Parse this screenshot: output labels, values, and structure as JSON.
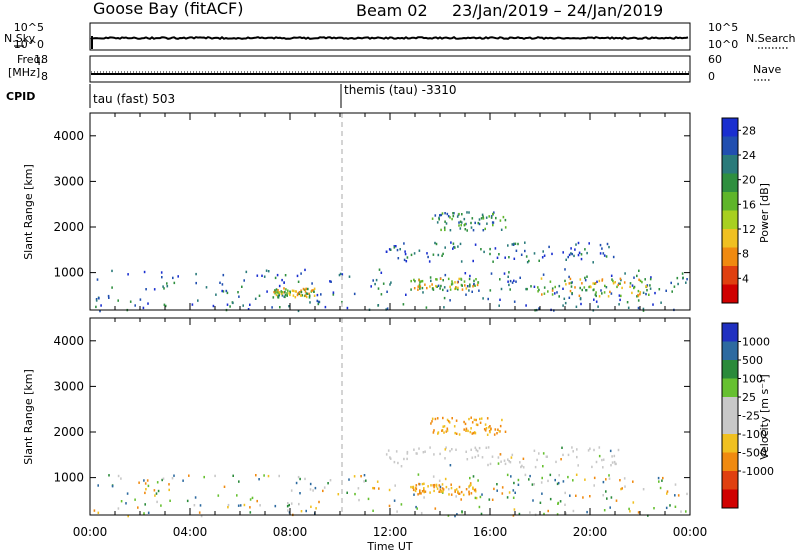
{
  "header": {
    "station": "Goose Bay (fitACF)",
    "beam": "Beam 02",
    "date_range": "23/Jan/2019 – 24/Jan/2019"
  },
  "status_panel": {
    "nsky_label": "N.Sky",
    "nsky_ticks": [
      "10^5",
      "10^0"
    ],
    "nsearch_label": "N.Search",
    "nsearch_ticks": [
      "10^5",
      "10^0"
    ],
    "freq_label_line1": "Freq.",
    "freq_label_line2": "[MHz]",
    "freq_ticks": [
      "18",
      "8"
    ],
    "nave_label": "Nave",
    "nave_ticks": [
      "60",
      "0"
    ],
    "cpid_label": "CPID",
    "cpid_entries": [
      "tau (fast) 503",
      "themis (tau) -3310"
    ]
  },
  "colors": {
    "power_scale": [
      "#1a2fd0",
      "#214fb0",
      "#2a7a7a",
      "#2f8f3f",
      "#5fb52a",
      "#a8d020",
      "#f0c020",
      "#f08a10",
      "#e04010",
      "#d00000"
    ],
    "velocity_scale": [
      "#2030c0",
      "#2d6aa0",
      "#2a8a3a",
      "#66c030",
      "#c8c8c8",
      "#c8c8c8",
      "#f0c020",
      "#f08a10",
      "#e04010",
      "#d00000"
    ],
    "scatter_power": [
      "#1a2fd0",
      "#214fb0",
      "#2a7a7a",
      "#2f8f3f",
      "#5fb52a",
      "#f0c020",
      "#f08a10"
    ],
    "scatter_velocity": [
      "#c8c8c8",
      "#f0c020",
      "#f08a10",
      "#66c030",
      "#2a8a3a",
      "#2d6aa0"
    ]
  },
  "chart_data": [
    {
      "type": "heatmap",
      "panel": "power",
      "ylabel": "Slant Range [km]",
      "xlabel": "Time UT",
      "x_ticks": [
        "00:00",
        "04:00",
        "08:00",
        "12:00",
        "16:00",
        "20:00",
        "00:00"
      ],
      "x_range_hours": [
        0,
        24
      ],
      "y_ticks": [
        1000,
        2000,
        3000,
        4000
      ],
      "ylim": [
        180,
        4500
      ],
      "colorbar_label": "Power [dB]",
      "colorbar_ticks": [
        "4",
        "8",
        "12",
        "16",
        "20",
        "24",
        "28"
      ],
      "colorbar_range": [
        0,
        30
      ],
      "vertical_marker_hour": 10,
      "features": [
        {
          "name": "near-range clutter",
          "t": [
            0.1,
            23.9
          ],
          "r": [
            180,
            1100
          ],
          "level": "low-mid"
        },
        {
          "name": "08:00 enhancement",
          "t": [
            7.3,
            9.0
          ],
          "r": [
            480,
            680
          ],
          "level": "high"
        },
        {
          "name": "main band",
          "t": [
            11.8,
            21.2
          ],
          "r": [
            1250,
            1700
          ],
          "level": "low-mid"
        },
        {
          "name": "upper blob",
          "t": [
            13.6,
            16.6
          ],
          "r": [
            1950,
            2350
          ],
          "level": "mid"
        },
        {
          "name": "mid-range echoes 14:00",
          "t": [
            12.8,
            15.5
          ],
          "r": [
            650,
            900
          ],
          "level": "high"
        },
        {
          "name": "mid-range echoes 20:00",
          "t": [
            17.8,
            22.5
          ],
          "r": [
            500,
            900
          ],
          "level": "high"
        }
      ]
    },
    {
      "type": "heatmap",
      "panel": "velocity",
      "ylabel": "Slant Range [km]",
      "xlabel": "Time UT",
      "x_ticks": [
        "00:00",
        "04:00",
        "08:00",
        "12:00",
        "16:00",
        "20:00",
        "00:00"
      ],
      "x_range_hours": [
        0,
        24
      ],
      "y_ticks": [
        1000,
        2000,
        3000,
        4000
      ],
      "ylim": [
        180,
        4500
      ],
      "colorbar_label": "Velocity [m s⁻¹]",
      "colorbar_ticks": [
        "1000",
        "500",
        "100",
        "25",
        "-25",
        "-100",
        "-500",
        "-1000"
      ],
      "vertical_marker_hour": 10,
      "features": [
        {
          "name": "near-range clutter",
          "t": [
            0.1,
            23.9
          ],
          "r": [
            180,
            1100
          ],
          "velocity": "mixed"
        },
        {
          "name": "main band (ground scatter)",
          "t": [
            11.8,
            21.2
          ],
          "r": [
            1250,
            1700
          ],
          "velocity": "near zero"
        },
        {
          "name": "upper blob",
          "t": [
            13.6,
            16.6
          ],
          "r": [
            1950,
            2350
          ],
          "velocity": "negative"
        },
        {
          "name": "mid-range echoes",
          "t": [
            12.8,
            15.5
          ],
          "r": [
            650,
            900
          ],
          "velocity": "negative"
        }
      ]
    }
  ]
}
